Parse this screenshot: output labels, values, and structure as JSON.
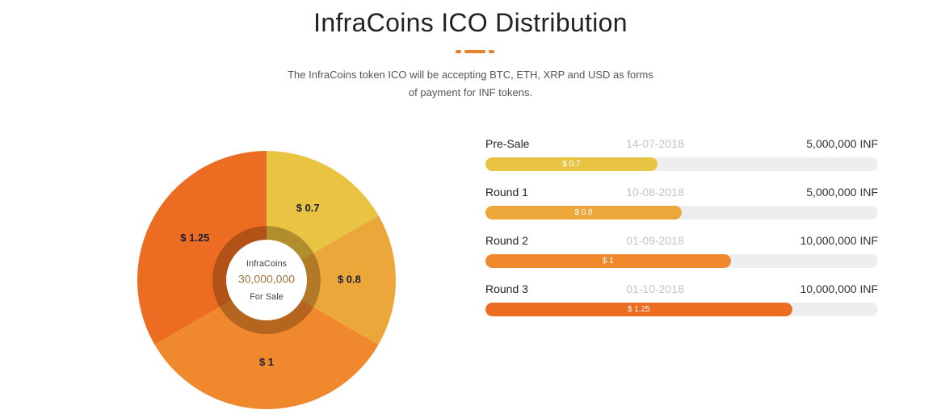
{
  "header": {
    "title": "InfraCoins ICO Distribution",
    "subtitle_line1": "The InfraCoins token ICO will be accepting BTC, ETH, XRP and USD as forms",
    "subtitle_line2": "of payment for INF tokens.",
    "accent_color": "#e8822a"
  },
  "chart_data": [
    {
      "type": "pie",
      "style": "donut",
      "categories": [
        "$ 0.7",
        "$ 0.8",
        "$ 1",
        "$ 1.25"
      ],
      "values": [
        5000000,
        5000000,
        10000000,
        10000000
      ],
      "colors": [
        "#e9c443",
        "#eca73a",
        "#f0882d",
        "#ec6c22"
      ],
      "start_angle_deg": 0,
      "center": {
        "line1": "InfraCoins",
        "line2": "30,000,000",
        "line3": "For Sale"
      }
    },
    {
      "type": "bar",
      "orientation": "horizontal",
      "categories": [
        "Pre-Sale",
        "Round 1",
        "Round 2",
        "Round 3"
      ],
      "values": [
        0.7,
        0.8,
        1,
        1.25
      ],
      "value_labels": [
        "$ 0.7",
        "$ 0.8",
        "$ 1",
        "$ 1.25"
      ],
      "xlim": [
        0,
        1.6
      ]
    }
  ],
  "rounds": [
    {
      "name": "Pre-Sale",
      "date": "14-07-2018",
      "amount": "5,000,000 INF",
      "price_label": "$ 0.7",
      "price": 0.7,
      "color": "#e9c443"
    },
    {
      "name": "Round 1",
      "date": "10-08-2018",
      "amount": "5,000,000 INF",
      "price_label": "$ 0.8",
      "price": 0.8,
      "color": "#eca73a"
    },
    {
      "name": "Round 2",
      "date": "01-09-2018",
      "amount": "10,000,000 INF",
      "price_label": "$ 1",
      "price": 1,
      "color": "#f0882d"
    },
    {
      "name": "Round 3",
      "date": "01-10-2018",
      "amount": "10,000,000 INF",
      "price_label": "$ 1.25",
      "price": 1.25,
      "color": "#ec6c22"
    }
  ],
  "price_scale_max": 1.6
}
